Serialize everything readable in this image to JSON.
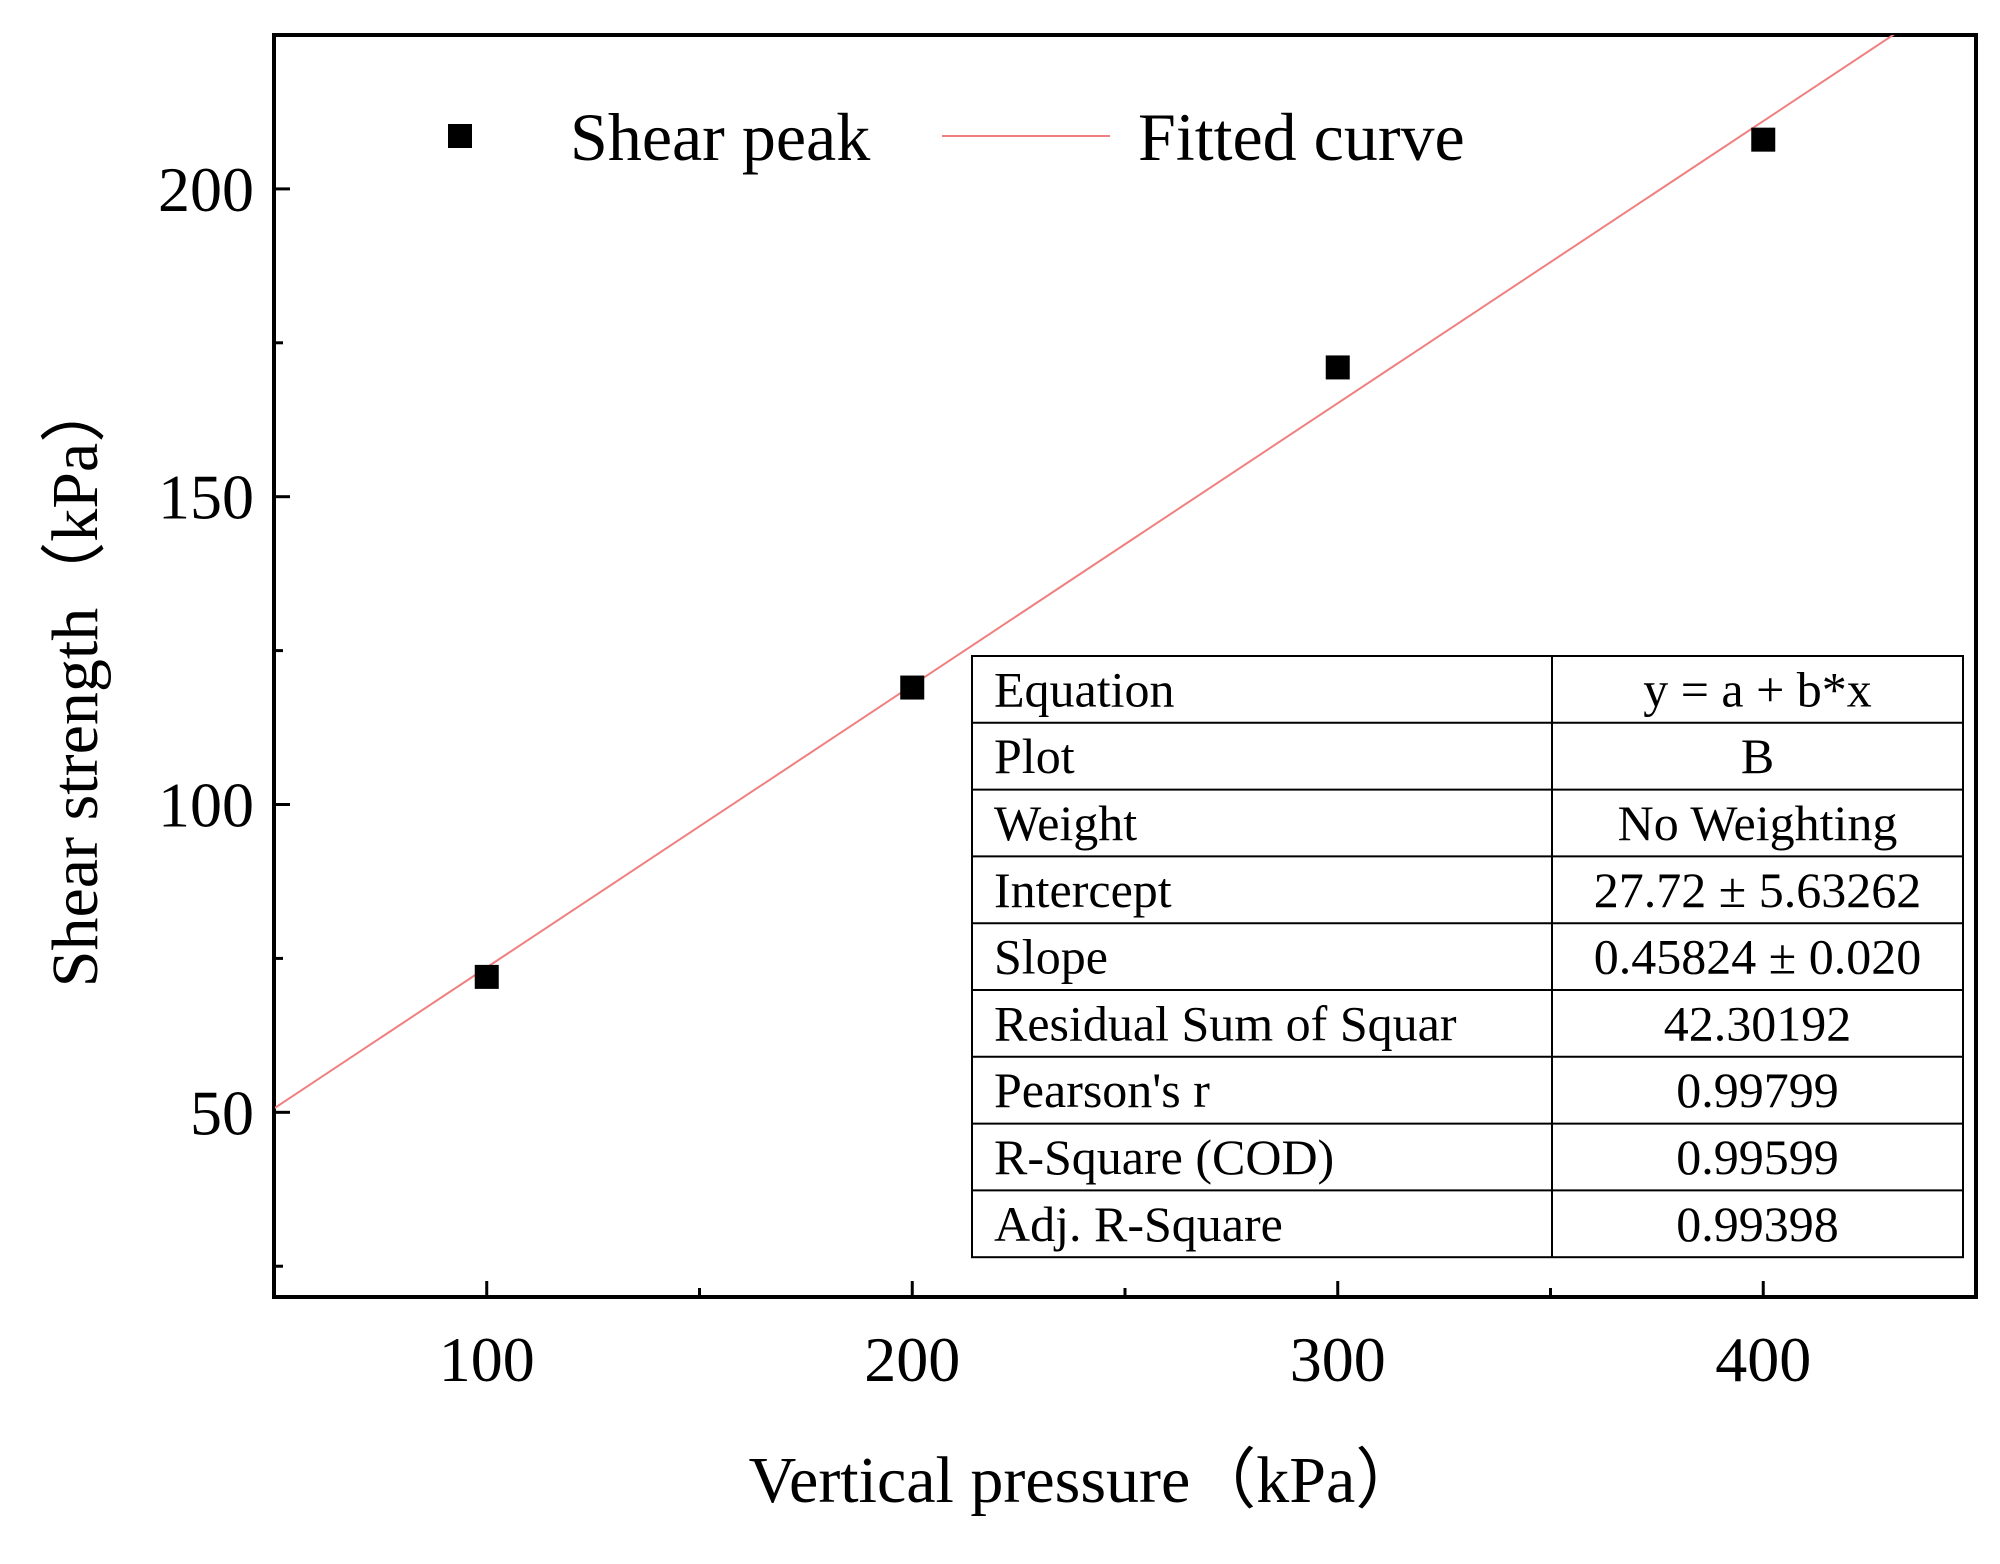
{
  "chart_data": {
    "type": "scatter",
    "title": "",
    "xlabel": "Vertical pressure（kPa）",
    "ylabel": "Shear strength（kPa）",
    "xlim": [
      50,
      450
    ],
    "ylim": [
      20,
      225
    ],
    "xticks": [
      100,
      200,
      300,
      400
    ],
    "xticks_minor": [
      150,
      250,
      350
    ],
    "yticks": [
      50,
      100,
      150,
      200
    ],
    "yticks_minor": [
      25,
      75,
      125,
      175,
      225
    ],
    "grid": false,
    "legend_position": "top",
    "series": [
      {
        "name": "Shear peak",
        "kind": "scatter",
        "marker": "square",
        "color": "#000000",
        "x": [
          100,
          200,
          300,
          400
        ],
        "y": [
          72,
          119,
          171,
          208
        ]
      },
      {
        "name": "Fitted curve",
        "kind": "line",
        "color": "#f08080",
        "intercept": 27.72,
        "slope": 0.45824
      }
    ],
    "stats_table": {
      "position": "bottom-right",
      "rows": [
        {
          "label": "Equation",
          "value": "y = a + b*x"
        },
        {
          "label": "Plot",
          "value": "B"
        },
        {
          "label": "Weight",
          "value": "No Weighting"
        },
        {
          "label": "Intercept",
          "value": "27.72 ± 5.63262"
        },
        {
          "label": "Slope",
          "value": "0.45824 ± 0.020"
        },
        {
          "label": "Residual Sum of Squar",
          "value": "42.30192"
        },
        {
          "label": "Pearson's r",
          "value": "0.99799"
        },
        {
          "label": "R-Square (COD)",
          "value": "0.99599"
        },
        {
          "label": "Adj. R-Square",
          "value": "0.99398"
        }
      ]
    }
  }
}
